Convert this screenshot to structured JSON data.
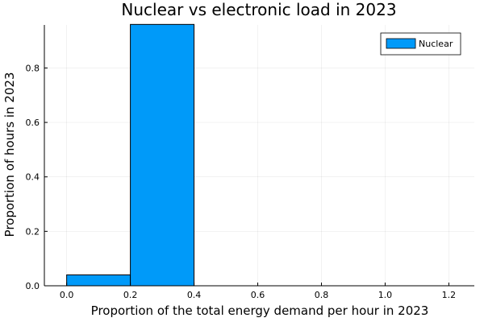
{
  "chart_data": {
    "type": "bar",
    "title": "Nuclear vs electronic load in 2023",
    "xlabel": "Proportion of the total energy demand per hour in 2023",
    "ylabel": "Proportion of hours in 2023",
    "xlim": [
      -0.07,
      1.28
    ],
    "ylim": [
      0,
      0.958
    ],
    "xticks": [
      0.0,
      0.2,
      0.4,
      0.6,
      0.8,
      1.0,
      1.2
    ],
    "xtick_labels": [
      "0.0",
      "0.2",
      "0.4",
      "0.6",
      "0.8",
      "1.0",
      "1.2"
    ],
    "yticks": [
      0.0,
      0.2,
      0.4,
      0.6,
      0.8
    ],
    "ytick_labels": [
      "0.0",
      "0.2",
      "0.4",
      "0.6",
      "0.8"
    ],
    "grid": true,
    "legend_position": "top-right",
    "series": [
      {
        "name": "Nuclear",
        "color": "#009AF9",
        "bins": [
          {
            "x0": 0.0,
            "x1": 0.2,
            "value": 0.04
          },
          {
            "x0": 0.2,
            "x1": 0.4,
            "value": 0.96
          }
        ]
      }
    ]
  }
}
